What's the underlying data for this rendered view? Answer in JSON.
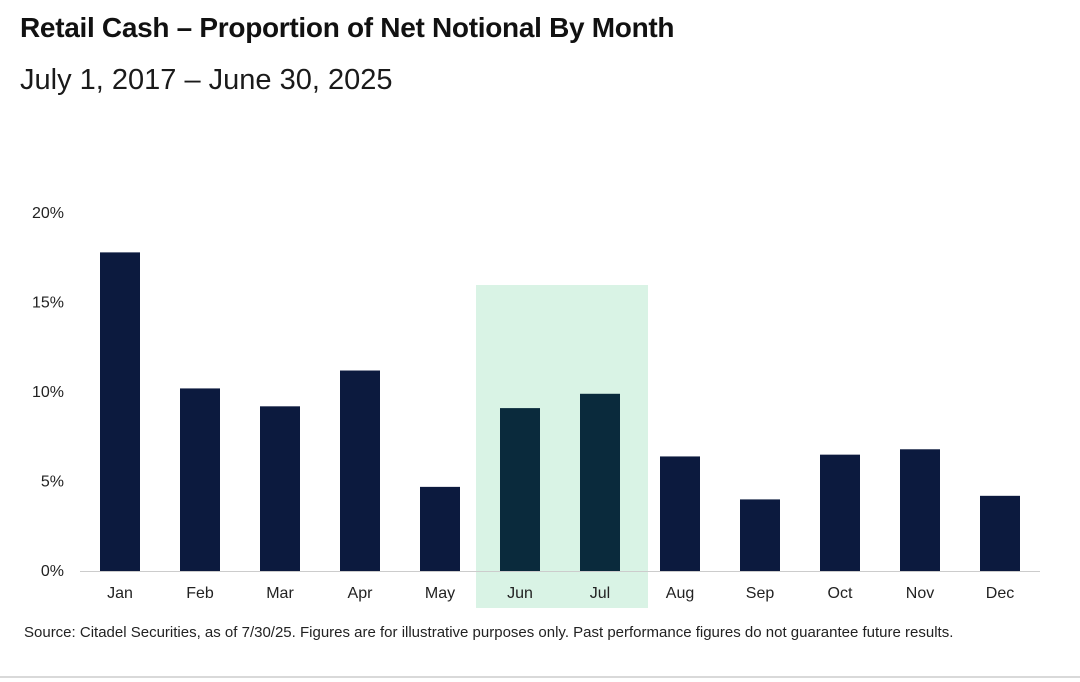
{
  "colors": {
    "bar": "#0c1a3e",
    "highlight_bar": "#0a2a3c",
    "highlight_band": "#d9f3e5",
    "axis_line": "#cccccc"
  },
  "chart_data": {
    "type": "bar",
    "title": "Retail Cash – Proportion of Net Notional By Month",
    "subtitle": "July 1, 2017 – June 30, 2025",
    "categories": [
      "Jan",
      "Feb",
      "Mar",
      "Apr",
      "May",
      "Jun",
      "Jul",
      "Aug",
      "Sep",
      "Oct",
      "Nov",
      "Dec"
    ],
    "values": [
      17.8,
      10.2,
      9.2,
      11.2,
      4.7,
      9.1,
      9.9,
      6.4,
      4.0,
      6.5,
      6.8,
      4.2
    ],
    "unit": "%",
    "ylim": [
      0,
      20
    ],
    "yticks": [
      "0%",
      "5%",
      "10%",
      "15%",
      "20%"
    ],
    "ytick_values": [
      0,
      5,
      10,
      15,
      20
    ],
    "highlighted_categories": [
      "Jun",
      "Jul"
    ],
    "grid": false,
    "legend": "none"
  },
  "footnote": "Source: Citadel Securities, as of 7/30/25. Figures are for illustrative purposes only. Past performance figures do not guarantee future results."
}
